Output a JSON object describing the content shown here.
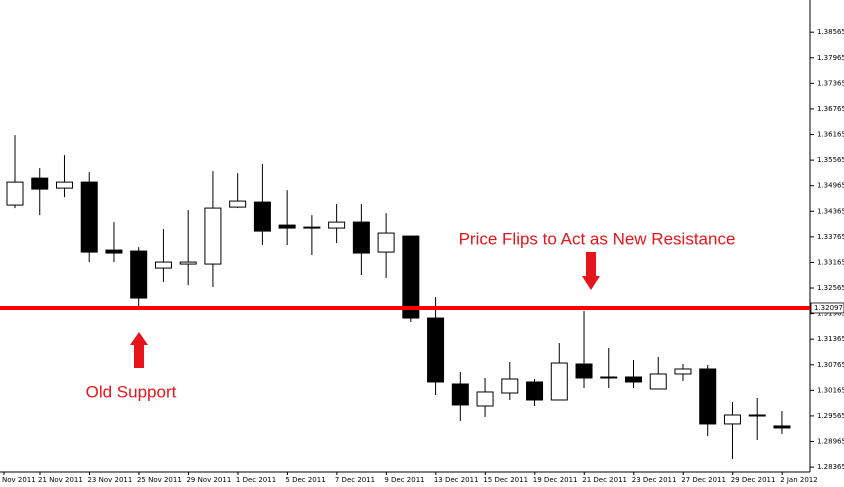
{
  "chart_data": {
    "type": "candlestick",
    "up_color": "#ffffff",
    "down_color": "#000000",
    "ylim": [
      1.2825,
      1.3932
    ],
    "yticks": [
      1.38565,
      1.37965,
      1.37365,
      1.36765,
      1.36165,
      1.35565,
      1.34965,
      1.34365,
      1.33765,
      1.33165,
      1.32565,
      1.31965,
      1.31365,
      1.30765,
      1.30165,
      1.29565,
      1.28965,
      1.28365
    ],
    "x_labels": [
      "Nov 2011",
      "21 Nov 2011",
      "23 Nov 2011",
      "25 Nov 2011",
      "29 Nov 2011",
      "1 Dec 2011",
      "5 Dec 2011",
      "7 Dec 2011",
      "9 Dec 2011",
      "13 Dec 2011",
      "15 Dec 2011",
      "19 Dec 2011",
      "21 Dec 2011",
      "23 Dec 2011",
      "27 Dec 2011",
      "29 Dec 2011",
      "2 Jan 2012"
    ],
    "level": {
      "value": 1.32097,
      "color": "#ff0000"
    },
    "annotations": [
      "Price Flips to Act as New Resistance",
      "Old Support"
    ],
    "candles": [
      {
        "open": 1.3451,
        "high": 1.36151,
        "low": 1.3444,
        "close": 1.35049
      },
      {
        "open": 1.35143,
        "high": 1.35377,
        "low": 1.34275,
        "close": 1.34885
      },
      {
        "open": 1.34908,
        "high": 1.35682,
        "low": 1.34697,
        "close": 1.35049
      },
      {
        "open": 1.35049,
        "high": 1.35283,
        "low": 1.33174,
        "close": 1.33408
      },
      {
        "open": 1.33455,
        "high": 1.34111,
        "low": 1.33174,
        "close": 1.33385
      },
      {
        "open": 1.33432,
        "high": 1.33525,
        "low": 1.32072,
        "close": 1.3233
      },
      {
        "open": 1.33033,
        "high": 1.33947,
        "low": 1.32705,
        "close": 1.33174
      },
      {
        "open": 1.33127,
        "high": 1.34393,
        "low": 1.32635,
        "close": 1.33174
      },
      {
        "open": 1.33127,
        "high": 1.35307,
        "low": 1.32588,
        "close": 1.3444
      },
      {
        "open": 1.34463,
        "high": 1.3526,
        "low": 1.3444,
        "close": 1.34604
      },
      {
        "open": 1.3458,
        "high": 1.35471,
        "low": 1.33572,
        "close": 1.339
      },
      {
        "open": 1.34041,
        "high": 1.34861,
        "low": 1.33572,
        "close": 1.33971
      },
      {
        "open": 1.33994,
        "high": 1.34275,
        "low": 1.33338,
        "close": 1.33994
      },
      {
        "open": 1.33971,
        "high": 1.34533,
        "low": 1.33619,
        "close": 1.34111
      },
      {
        "open": 1.34111,
        "high": 1.34533,
        "low": 1.32869,
        "close": 1.33385
      },
      {
        "open": 1.33408,
        "high": 1.34322,
        "low": 1.32799,
        "close": 1.33854
      },
      {
        "open": 1.33783,
        "high": 1.33783,
        "low": 1.31767,
        "close": 1.31861
      },
      {
        "open": 1.31861,
        "high": 1.32353,
        "low": 1.30056,
        "close": 1.30361
      },
      {
        "open": 1.30314,
        "high": 1.30595,
        "low": 1.29447,
        "close": 1.29822
      },
      {
        "open": 1.29798,
        "high": 1.30455,
        "low": 1.29541,
        "close": 1.30127
      },
      {
        "open": 1.30103,
        "high": 1.3083,
        "low": 1.29939,
        "close": 1.30431
      },
      {
        "open": 1.30361,
        "high": 1.30431,
        "low": 1.29798,
        "close": 1.29939
      },
      {
        "open": 1.29939,
        "high": 1.31275,
        "low": 1.29939,
        "close": 1.30806
      },
      {
        "open": 1.30783,
        "high": 1.32025,
        "low": 1.3022,
        "close": 1.30455
      },
      {
        "open": 1.30478,
        "high": 1.31158,
        "low": 1.3022,
        "close": 1.30478
      },
      {
        "open": 1.30478,
        "high": 1.30877,
        "low": 1.3022,
        "close": 1.30361
      },
      {
        "open": 1.30197,
        "high": 1.30947,
        "low": 1.30197,
        "close": 1.30549
      },
      {
        "open": 1.30549,
        "high": 1.30783,
        "low": 1.30384,
        "close": 1.30666
      },
      {
        "open": 1.30666,
        "high": 1.30759,
        "low": 1.29095,
        "close": 1.29377
      },
      {
        "open": 1.29377,
        "high": 1.29892,
        "low": 1.28556,
        "close": 1.29587
      },
      {
        "open": 1.29587,
        "high": 1.29986,
        "low": 1.29001,
        "close": 1.29587
      },
      {
        "open": 1.2933,
        "high": 1.29681,
        "low": 1.29142,
        "close": 1.29283
      }
    ]
  }
}
